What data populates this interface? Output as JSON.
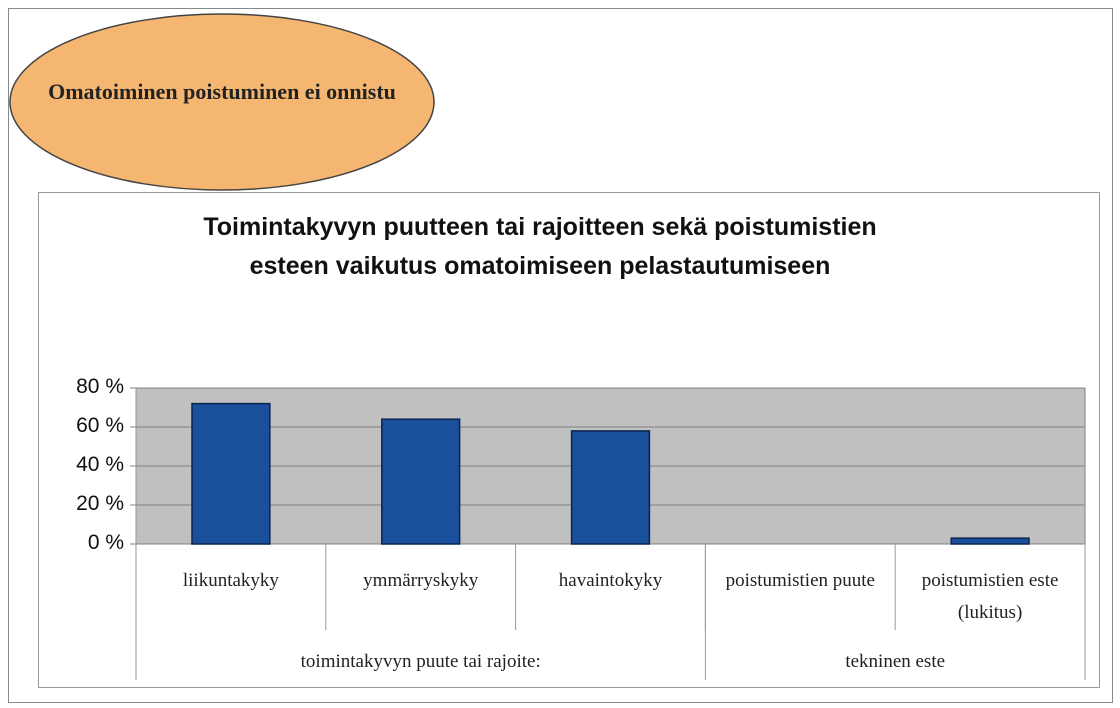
{
  "chart_data": {
    "type": "bar",
    "annotation": "Omatoiminen poistuminen ei onnistu",
    "title": "Toimintakyvyn puutteen tai rajoitteen sekä poistumistien esteen vaikutus omatoimiseen pelastautumiseen",
    "categories": [
      "liikuntakyky",
      "ymmärryskyky",
      "havaintokyky",
      "poistumistien puute",
      "poistumistien este (lukitus)"
    ],
    "groups": [
      {
        "label": "toimintakyvyn puute tai rajoite:",
        "size": 3
      },
      {
        "label": "tekninen este",
        "size": 2
      }
    ],
    "values": [
      72,
      64,
      58,
      0,
      3
    ],
    "color": "#1a4f9c",
    "ylim": [
      0,
      80
    ],
    "yticks": [
      {
        "value": 0,
        "label": "0 %"
      },
      {
        "value": 20,
        "label": "20 %"
      },
      {
        "value": 40,
        "label": "40 %"
      },
      {
        "value": 60,
        "label": "60 %"
      },
      {
        "value": 80,
        "label": "80 %"
      }
    ],
    "grid": true
  }
}
